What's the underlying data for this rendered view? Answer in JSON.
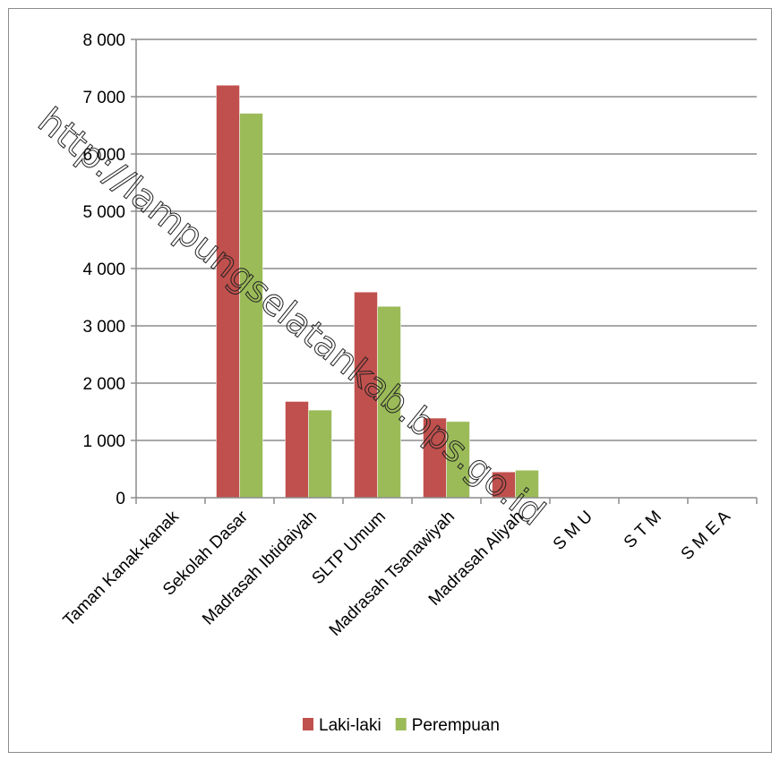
{
  "chart_data": {
    "type": "bar",
    "title": "",
    "xlabel": "",
    "ylabel": "",
    "ylim": [
      0,
      8000
    ],
    "y_ticks": [
      {
        "value": 0,
        "label": "0"
      },
      {
        "value": 1000,
        "label": "1 000"
      },
      {
        "value": 2000,
        "label": "2 000"
      },
      {
        "value": 3000,
        "label": "3 000"
      },
      {
        "value": 4000,
        "label": "4 000"
      },
      {
        "value": 5000,
        "label": "5 000"
      },
      {
        "value": 6000,
        "label": "6 000"
      },
      {
        "value": 7000,
        "label": "7 000"
      },
      {
        "value": 8000,
        "label": "8 000"
      }
    ],
    "grid": true,
    "legend_position": "bottom",
    "categories": [
      "Taman Kanak-kanak",
      "Sekolah Dasar",
      "Madrasah Ibtidaiyah",
      "SLTP Umum",
      "Madrasah Tsanawiyah",
      "Madrasah Aliyah",
      "S M U",
      "S T M",
      "S M E A"
    ],
    "series": [
      {
        "name": "Laki-laki",
        "color": "#c0504d",
        "values": [
          0,
          7200,
          1680,
          3590,
          1390,
          450,
          0,
          0,
          0
        ]
      },
      {
        "name": "Perempuan",
        "color": "#9bbb59",
        "values": [
          0,
          6710,
          1530,
          3340,
          1330,
          480,
          0,
          0,
          0
        ]
      }
    ]
  },
  "watermark": "http://lampungselatankab.bps.go.id"
}
